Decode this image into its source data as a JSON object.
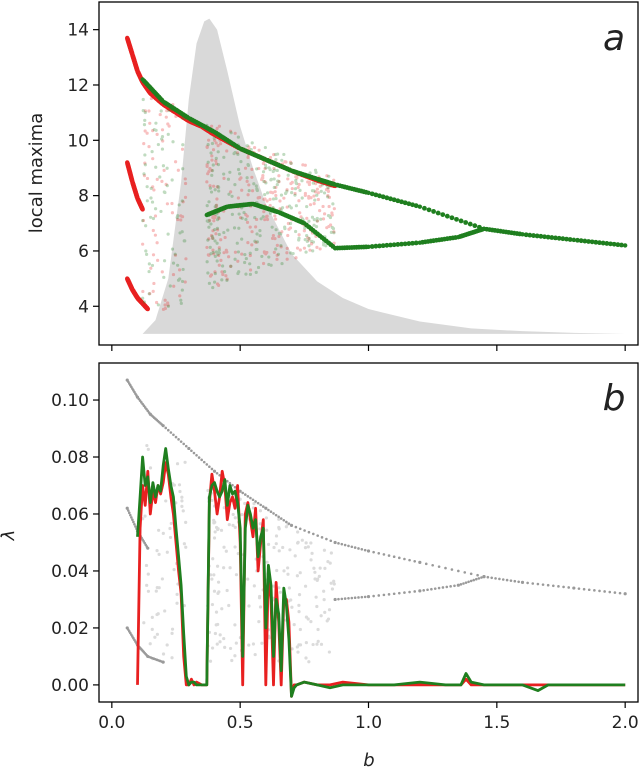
{
  "chart_data": [
    {
      "panel_label": "a",
      "type": "scatter",
      "ylabel": "local maxima",
      "xlabel": "",
      "xlim": [
        -0.05,
        2.05
      ],
      "ylim": [
        2.6,
        15.0
      ],
      "yticks": [
        4,
        6,
        8,
        10,
        12,
        14
      ],
      "ytick_labels": [
        "4",
        "6",
        "8",
        "10",
        "12",
        "14"
      ],
      "xticks": [
        0.0,
        0.5,
        1.0,
        1.5,
        2.0
      ],
      "grid": false,
      "colors": {
        "series_red": "#e82020",
        "series_green": "#1f7f1f",
        "background_distribution": "#d9d9d9"
      },
      "series": [
        {
          "role": "gray shaded distribution (right-skewed, peak near b=0.38)",
          "color": "#d9d9d9",
          "x": [
            0.12,
            0.17,
            0.22,
            0.27,
            0.3,
            0.33,
            0.36,
            0.38,
            0.41,
            0.45,
            0.5,
            0.55,
            0.6,
            0.7,
            0.8,
            0.9,
            1.0,
            1.2,
            1.4,
            1.6,
            1.8,
            2.0
          ],
          "y": [
            3.0,
            3.5,
            5.0,
            8.5,
            11.5,
            13.5,
            14.3,
            14.4,
            14.0,
            12.5,
            10.5,
            9.0,
            7.7,
            5.9,
            4.9,
            4.3,
            3.9,
            3.45,
            3.2,
            3.1,
            3.04,
            3.0
          ]
        },
        {
          "role": "red scatter (local maxima vs b)",
          "color": "#e82020",
          "branches": [
            {
              "x": [
                0.06,
                0.08,
                0.1,
                0.12,
                0.15,
                0.2,
                0.25,
                0.3,
                0.35,
                0.4,
                0.5,
                0.6,
                0.7,
                0.8,
                0.87
              ],
              "y": [
                13.7,
                13.1,
                12.5,
                12.1,
                11.7,
                11.3,
                11.0,
                10.7,
                10.5,
                10.2,
                9.7,
                9.3,
                8.9,
                8.55,
                8.35
              ]
            },
            {
              "x": [
                0.06,
                0.08,
                0.1,
                0.12
              ],
              "y": [
                9.2,
                8.5,
                7.9,
                7.5
              ]
            },
            {
              "x": [
                0.06,
                0.08,
                0.1,
                0.12,
                0.14
              ],
              "y": [
                5.0,
                4.6,
                4.3,
                4.1,
                3.9
              ]
            }
          ]
        },
        {
          "role": "green scatter (local maxima vs b)",
          "color": "#1f7f1f",
          "branches": [
            {
              "x": [
                0.12,
                0.2,
                0.3,
                0.4,
                0.5,
                0.6,
                0.7,
                0.8,
                0.87,
                1.0,
                1.2,
                1.45,
                1.6,
                1.8,
                2.0
              ],
              "y": [
                12.2,
                11.4,
                10.8,
                10.3,
                9.7,
                9.3,
                8.9,
                8.6,
                8.4,
                8.1,
                7.6,
                6.8,
                6.6,
                6.4,
                6.2
              ]
            },
            {
              "x": [
                0.87,
                1.0,
                1.2,
                1.35,
                1.45
              ],
              "y": [
                6.1,
                6.15,
                6.3,
                6.5,
                6.8
              ]
            },
            {
              "x": [
                0.37,
                0.45,
                0.55,
                0.65,
                0.75,
                0.87
              ],
              "y": [
                7.3,
                7.6,
                7.7,
                7.4,
                7.0,
                6.1
              ]
            }
          ]
        }
      ]
    },
    {
      "panel_label": "b",
      "type": "line",
      "ylabel": "λ",
      "xlabel": "b",
      "xlim": [
        -0.05,
        2.05
      ],
      "ylim": [
        -0.006,
        0.113
      ],
      "yticks": [
        0.0,
        0.02,
        0.04,
        0.06,
        0.08,
        0.1
      ],
      "ytick_labels": [
        "0.00",
        "0.02",
        "0.04",
        "0.06",
        "0.08",
        "0.10"
      ],
      "xticks": [
        0.0,
        0.5,
        1.0,
        1.5,
        2.0
      ],
      "xtick_labels": [
        "0.0",
        "0.5",
        "1.0",
        "1.5",
        "2.0"
      ],
      "grid": false,
      "colors": {
        "series_red": "#e82020",
        "series_green": "#1f7f1f",
        "background_scatter": "#9a9a9a"
      },
      "series": [
        {
          "role": "gray background scatter",
          "color": "#9a9a9a",
          "branches": [
            {
              "x": [
                0.06,
                0.1,
                0.15,
                0.2,
                0.3,
                0.4,
                0.5,
                0.6,
                0.7,
                0.87,
                1.0,
                1.2,
                1.45,
                1.6,
                1.8,
                2.0
              ],
              "y": [
                0.107,
                0.101,
                0.095,
                0.091,
                0.083,
                0.075,
                0.068,
                0.062,
                0.056,
                0.05,
                0.047,
                0.043,
                0.038,
                0.036,
                0.034,
                0.032
              ]
            },
            {
              "x": [
                0.87,
                1.0,
                1.2,
                1.35,
                1.45
              ],
              "y": [
                0.03,
                0.031,
                0.033,
                0.035,
                0.038
              ]
            },
            {
              "x": [
                0.06,
                0.1,
                0.14
              ],
              "y": [
                0.062,
                0.054,
                0.048
              ]
            },
            {
              "x": [
                0.06,
                0.1,
                0.14,
                0.2
              ],
              "y": [
                0.02,
                0.014,
                0.01,
                0.008
              ]
            }
          ]
        },
        {
          "name": "",
          "role": "red line",
          "color": "#e82020",
          "x": [
            0.1,
            0.11,
            0.12,
            0.13,
            0.14,
            0.15,
            0.16,
            0.17,
            0.18,
            0.19,
            0.2,
            0.21,
            0.22,
            0.23,
            0.24,
            0.25,
            0.26,
            0.27,
            0.28,
            0.29,
            0.3,
            0.31,
            0.32,
            0.33,
            0.35,
            0.37,
            0.38,
            0.39,
            0.4,
            0.41,
            0.42,
            0.43,
            0.44,
            0.45,
            0.46,
            0.47,
            0.48,
            0.49,
            0.5,
            0.51,
            0.52,
            0.53,
            0.54,
            0.55,
            0.56,
            0.57,
            0.58,
            0.59,
            0.6,
            0.61,
            0.62,
            0.63,
            0.64,
            0.65,
            0.66,
            0.67,
            0.68,
            0.69,
            0.7,
            0.71,
            0.72,
            0.75,
            0.8,
            0.85,
            0.9,
            1.0,
            1.1,
            1.2,
            1.3,
            1.36,
            1.38,
            1.4,
            1.45,
            1.5,
            1.6,
            1.66,
            1.7,
            1.8,
            1.9,
            2.0
          ],
          "y": [
            0.0,
            0.055,
            0.07,
            0.063,
            0.075,
            0.06,
            0.068,
            0.064,
            0.07,
            0.067,
            0.071,
            0.078,
            0.074,
            0.066,
            0.06,
            0.05,
            0.04,
            0.032,
            0.01,
            0.0,
            0.0,
            0.002,
            0.0,
            0.001,
            0.0,
            0.0,
            0.064,
            0.074,
            0.068,
            0.06,
            0.066,
            0.075,
            0.07,
            0.058,
            0.064,
            0.066,
            0.062,
            0.07,
            0.05,
            0.0,
            0.06,
            0.064,
            0.058,
            0.052,
            0.062,
            0.04,
            0.05,
            0.058,
            0.0,
            0.04,
            0.03,
            0.0,
            0.036,
            0.022,
            0.0,
            0.03,
            0.03,
            0.022,
            -0.004,
            0.0,
            0.0,
            0.001,
            0.0,
            0.0,
            0.001,
            0.0,
            0.0,
            0.0,
            0.0,
            0.0,
            0.002,
            0.0,
            0.0,
            0.0,
            0.0,
            0.0,
            0.0,
            0.0,
            0.0,
            0.0
          ]
        },
        {
          "name": "",
          "role": "green line",
          "color": "#1f7f1f",
          "x": [
            0.1,
            0.11,
            0.12,
            0.13,
            0.14,
            0.15,
            0.16,
            0.17,
            0.18,
            0.19,
            0.2,
            0.21,
            0.22,
            0.23,
            0.24,
            0.25,
            0.26,
            0.27,
            0.28,
            0.29,
            0.3,
            0.31,
            0.32,
            0.33,
            0.35,
            0.37,
            0.38,
            0.39,
            0.4,
            0.41,
            0.42,
            0.43,
            0.44,
            0.45,
            0.46,
            0.47,
            0.48,
            0.49,
            0.5,
            0.51,
            0.52,
            0.53,
            0.54,
            0.55,
            0.56,
            0.57,
            0.58,
            0.59,
            0.6,
            0.61,
            0.62,
            0.63,
            0.64,
            0.65,
            0.66,
            0.67,
            0.68,
            0.69,
            0.7,
            0.71,
            0.72,
            0.75,
            0.8,
            0.85,
            0.9,
            1.0,
            1.1,
            1.2,
            1.3,
            1.36,
            1.38,
            1.4,
            1.45,
            1.5,
            1.6,
            1.66,
            1.7,
            1.8,
            1.9,
            2.0
          ],
          "y": [
            0.052,
            0.066,
            0.08,
            0.07,
            0.073,
            0.064,
            0.071,
            0.066,
            0.07,
            0.068,
            0.077,
            0.083,
            0.076,
            0.07,
            0.066,
            0.055,
            0.045,
            0.035,
            0.018,
            0.003,
            0.0,
            0.001,
            0.001,
            0.0,
            0.0,
            0.0,
            0.066,
            0.07,
            0.071,
            0.068,
            0.066,
            0.068,
            0.072,
            0.063,
            0.07,
            0.067,
            0.068,
            0.064,
            0.055,
            0.01,
            0.055,
            0.063,
            0.06,
            0.055,
            0.058,
            0.045,
            0.052,
            0.055,
            0.02,
            0.042,
            0.035,
            0.01,
            0.03,
            0.025,
            0.005,
            0.034,
            0.028,
            0.016,
            -0.004,
            -0.001,
            0.0,
            0.001,
            0.0,
            -0.001,
            0.0,
            0.0,
            0.0,
            0.001,
            0.0,
            0.0,
            0.004,
            0.001,
            0.0,
            0.0,
            0.0,
            -0.002,
            0.0,
            0.0,
            0.0,
            0.0
          ]
        }
      ]
    }
  ]
}
